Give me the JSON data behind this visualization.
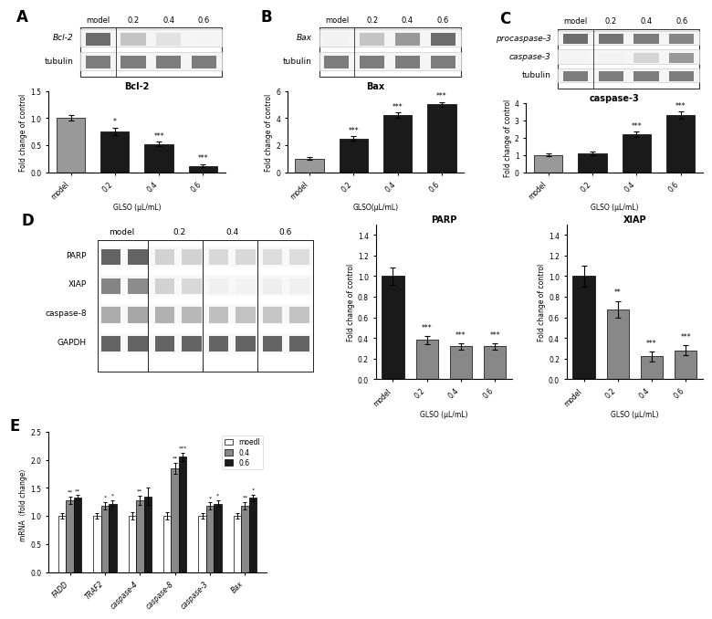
{
  "panel_A": {
    "label": "A",
    "blot_labels": [
      "Bcl-2",
      "tubulin"
    ],
    "conc_labels": [
      "model",
      "0.2",
      "0.4",
      "0.6"
    ],
    "bar_title": "Bcl-2",
    "bar_xlabel": "GLSO (μL/mL)",
    "bar_ylabel": "Fold change of control",
    "bar_categories": [
      "model",
      "0.2",
      "0.4",
      "0.6"
    ],
    "bar_values": [
      1.0,
      0.75,
      0.52,
      0.12
    ],
    "bar_errors": [
      0.05,
      0.07,
      0.04,
      0.03
    ],
    "bar_colors": [
      "#999999",
      "#1a1a1a",
      "#1a1a1a",
      "#1a1a1a"
    ],
    "bar_sig": [
      "",
      "*",
      "***",
      "***"
    ],
    "ylim": [
      0,
      1.5
    ]
  },
  "panel_B": {
    "label": "B",
    "blot_labels": [
      "Bax",
      "tubulin"
    ],
    "conc_labels": [
      "model",
      "0.2",
      "0.4",
      "0.6"
    ],
    "bar_title": "Bax",
    "bar_xlabel": "GLSO(μL/mL)",
    "bar_ylabel": "Fold change of control",
    "bar_categories": [
      "model",
      "0.2",
      "0.4",
      "0.6"
    ],
    "bar_values": [
      1.0,
      2.5,
      4.2,
      5.0
    ],
    "bar_errors": [
      0.1,
      0.15,
      0.2,
      0.15
    ],
    "bar_colors": [
      "#999999",
      "#1a1a1a",
      "#1a1a1a",
      "#1a1a1a"
    ],
    "bar_sig": [
      "",
      "***",
      "***",
      "***"
    ],
    "ylim": [
      0,
      6
    ]
  },
  "panel_C": {
    "label": "C",
    "blot_labels": [
      "procaspase-3",
      "caspase-3",
      "tubulin"
    ],
    "conc_labels": [
      "model",
      "0.2",
      "0.4",
      "0.6"
    ],
    "bar_title": "caspase-3",
    "bar_xlabel": "GLSO (μL/mL)",
    "bar_ylabel": "Fold change of control",
    "bar_categories": [
      "model",
      "0.2",
      "0.4",
      "0.6"
    ],
    "bar_values": [
      1.0,
      1.1,
      2.2,
      3.3
    ],
    "bar_errors": [
      0.08,
      0.1,
      0.15,
      0.2
    ],
    "bar_colors": [
      "#999999",
      "#1a1a1a",
      "#1a1a1a",
      "#1a1a1a"
    ],
    "bar_sig": [
      "",
      "",
      "***",
      "***"
    ],
    "ylim": [
      0,
      4
    ]
  },
  "panel_D": {
    "label": "D",
    "blot_labels": [
      "PARP",
      "XIAP",
      "caspase-8",
      "GAPDH"
    ],
    "conc_labels": [
      "model",
      "0.2",
      "0.4",
      "0.6"
    ],
    "parp_title": "PARP",
    "parp_xlabel": "GLSO (μL/mL)",
    "parp_ylabel": "Fold change of control",
    "parp_values": [
      1.0,
      0.38,
      0.32,
      0.32
    ],
    "parp_errors": [
      0.08,
      0.04,
      0.03,
      0.03
    ],
    "parp_colors": [
      "#1a1a1a",
      "#888888",
      "#888888",
      "#888888"
    ],
    "parp_sig": [
      "",
      "***",
      "***",
      "***"
    ],
    "parp_ylim": [
      0,
      1.5
    ],
    "xiap_title": "XIAP",
    "xiap_xlabel": "GLSO (μL/mL)",
    "xiap_ylabel": "Fold change of control",
    "xiap_values": [
      1.0,
      0.68,
      0.22,
      0.28
    ],
    "xiap_errors": [
      0.1,
      0.08,
      0.05,
      0.05
    ],
    "xiap_colors": [
      "#1a1a1a",
      "#888888",
      "#888888",
      "#888888"
    ],
    "xiap_sig": [
      "",
      "**",
      "***",
      "***"
    ],
    "xiap_ylim": [
      0,
      1.5
    ]
  },
  "panel_E": {
    "label": "E",
    "bar_xlabel": "",
    "bar_ylabel": "mRNA（fold change）",
    "categories": [
      "FADD",
      "TRAF2",
      "caspase-4",
      "caspase-8",
      "caspase-3",
      "Bax"
    ],
    "model_values": [
      1.0,
      1.0,
      1.0,
      1.0,
      1.0,
      1.0
    ],
    "val04": [
      1.28,
      1.18,
      1.28,
      1.85,
      1.18,
      1.18
    ],
    "val06": [
      1.32,
      1.22,
      1.35,
      2.05,
      1.22,
      1.32
    ],
    "model_errors": [
      0.05,
      0.05,
      0.07,
      0.06,
      0.05,
      0.05
    ],
    "err04": [
      0.06,
      0.07,
      0.08,
      0.1,
      0.06,
      0.07
    ],
    "err06": [
      0.05,
      0.06,
      0.15,
      0.08,
      0.06,
      0.06
    ],
    "sig04": [
      "**",
      "*",
      "**",
      "**",
      "*",
      "**"
    ],
    "sig06": [
      "**",
      "*",
      "",
      "***",
      "*",
      "*"
    ],
    "colors": [
      "#ffffff",
      "#888888",
      "#1a1a1a"
    ],
    "legend_labels": [
      "moedl",
      "0.4",
      "0.6"
    ],
    "ylim": [
      0,
      2.5
    ]
  },
  "bg_color": "#ffffff",
  "text_color": "#1a1a1a"
}
